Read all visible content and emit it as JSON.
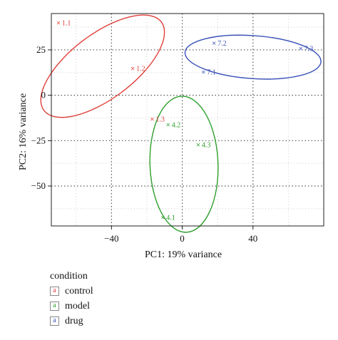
{
  "chart_data": {
    "type": "scatter",
    "xlabel": "PC1: 19% variance",
    "ylabel": "PC2: 16% variance",
    "xlim": [
      -74,
      80
    ],
    "ylim": [
      -72,
      45
    ],
    "xticks": [
      -40,
      0,
      40
    ],
    "yticks": [
      25,
      0,
      -25,
      -50
    ],
    "xtick_labels": [
      "−40",
      "0",
      "40"
    ],
    "ytick_labels": [
      "25",
      "0",
      "−25",
      "−50"
    ],
    "grid": true,
    "legend_position": "bottom-left",
    "legend_title": "condition",
    "legend_key_glyph": "a",
    "point_marker": "×",
    "series": [
      {
        "name": "control",
        "color": "#e0403a",
        "points": [
          {
            "label": "1.1",
            "x": -70,
            "y": 40
          },
          {
            "label": "1.2",
            "x": -28,
            "y": 15
          },
          {
            "label": "1.3",
            "x": -17,
            "y": -13
          }
        ],
        "ellipse": {
          "cx": -45,
          "cy": 16,
          "rx": 41,
          "ry": 18,
          "angle_deg": 37
        }
      },
      {
        "name": "model",
        "color": "#2ea02e",
        "points": [
          {
            "label": "4.2",
            "x": -8,
            "y": -16
          },
          {
            "label": "4.3",
            "x": 9,
            "y": -27
          },
          {
            "label": "4.1",
            "x": -11,
            "y": -67
          }
        ],
        "ellipse": {
          "cx": 1,
          "cy": -38,
          "rx": 19,
          "ry": 38,
          "angle_deg": 2
        }
      },
      {
        "name": "drug",
        "color": "#3a52b8",
        "points": [
          {
            "label": "7.2",
            "x": 18,
            "y": 29
          },
          {
            "label": "7.3",
            "x": 67,
            "y": 26
          },
          {
            "label": "7.1",
            "x": 12,
            "y": 13
          }
        ],
        "ellipse": {
          "cx": 40,
          "cy": 21,
          "rx": 38,
          "ry": 12,
          "angle_deg": -4
        }
      }
    ]
  }
}
